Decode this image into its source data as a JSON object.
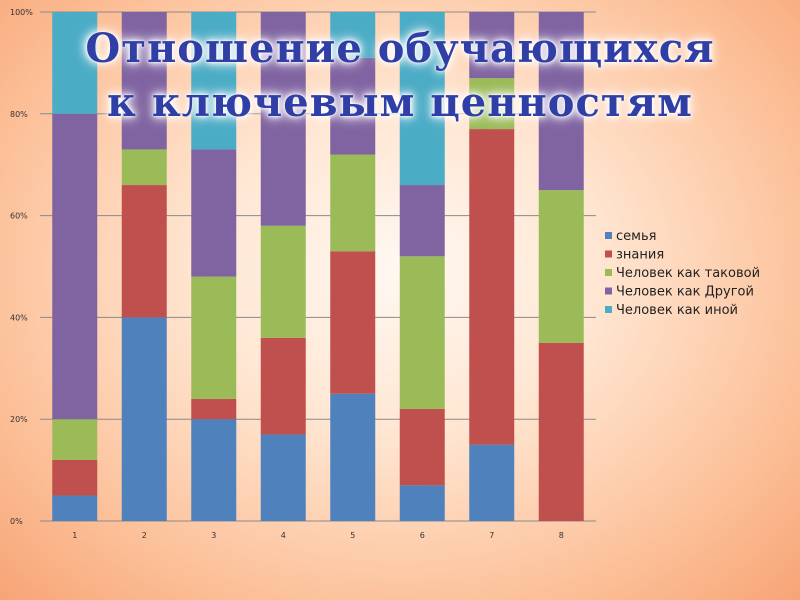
{
  "title": {
    "line1": "Отношение обучающихся",
    "line2": "к ключевым ценностям"
  },
  "colors": {
    "семья": "#4f81bd",
    "знания": "#c0504d",
    "Человек как таковой": "#9bbb59",
    "Человек как Другой": "#8064a2",
    "Человек как иной": "#4bacc6",
    "gridline": "#8a8a8a"
  },
  "chart_data": {
    "type": "bar",
    "stacked": true,
    "percent_stacked": true,
    "title": "Отношение обучающихся к ключевым ценностям",
    "categories": [
      "1",
      "2",
      "3",
      "4",
      "5",
      "6",
      "7",
      "8"
    ],
    "series": [
      {
        "name": "семья",
        "values": [
          5,
          40,
          20,
          17,
          25,
          7,
          15,
          0
        ]
      },
      {
        "name": "знания",
        "values": [
          7,
          26,
          4,
          19,
          28,
          15,
          62,
          35
        ]
      },
      {
        "name": "Человек как таковой",
        "values": [
          8,
          7,
          24,
          22,
          19,
          30,
          10,
          30
        ]
      },
      {
        "name": "Человек как Другой",
        "values": [
          60,
          27,
          25,
          42,
          19,
          14,
          13,
          35
        ]
      },
      {
        "name": "Человек как иной",
        "values": [
          20,
          0,
          27,
          0,
          9,
          34,
          0,
          0
        ]
      }
    ],
    "y_ticks": [
      "0%",
      "20%",
      "40%",
      "60%",
      "80%",
      "100%"
    ],
    "ylim": [
      0,
      100
    ],
    "grid": true,
    "legend_position": "right",
    "legend": [
      "семья",
      "знания",
      "Человек как таковой",
      "Человек как Другой",
      "Человек как иной"
    ]
  }
}
